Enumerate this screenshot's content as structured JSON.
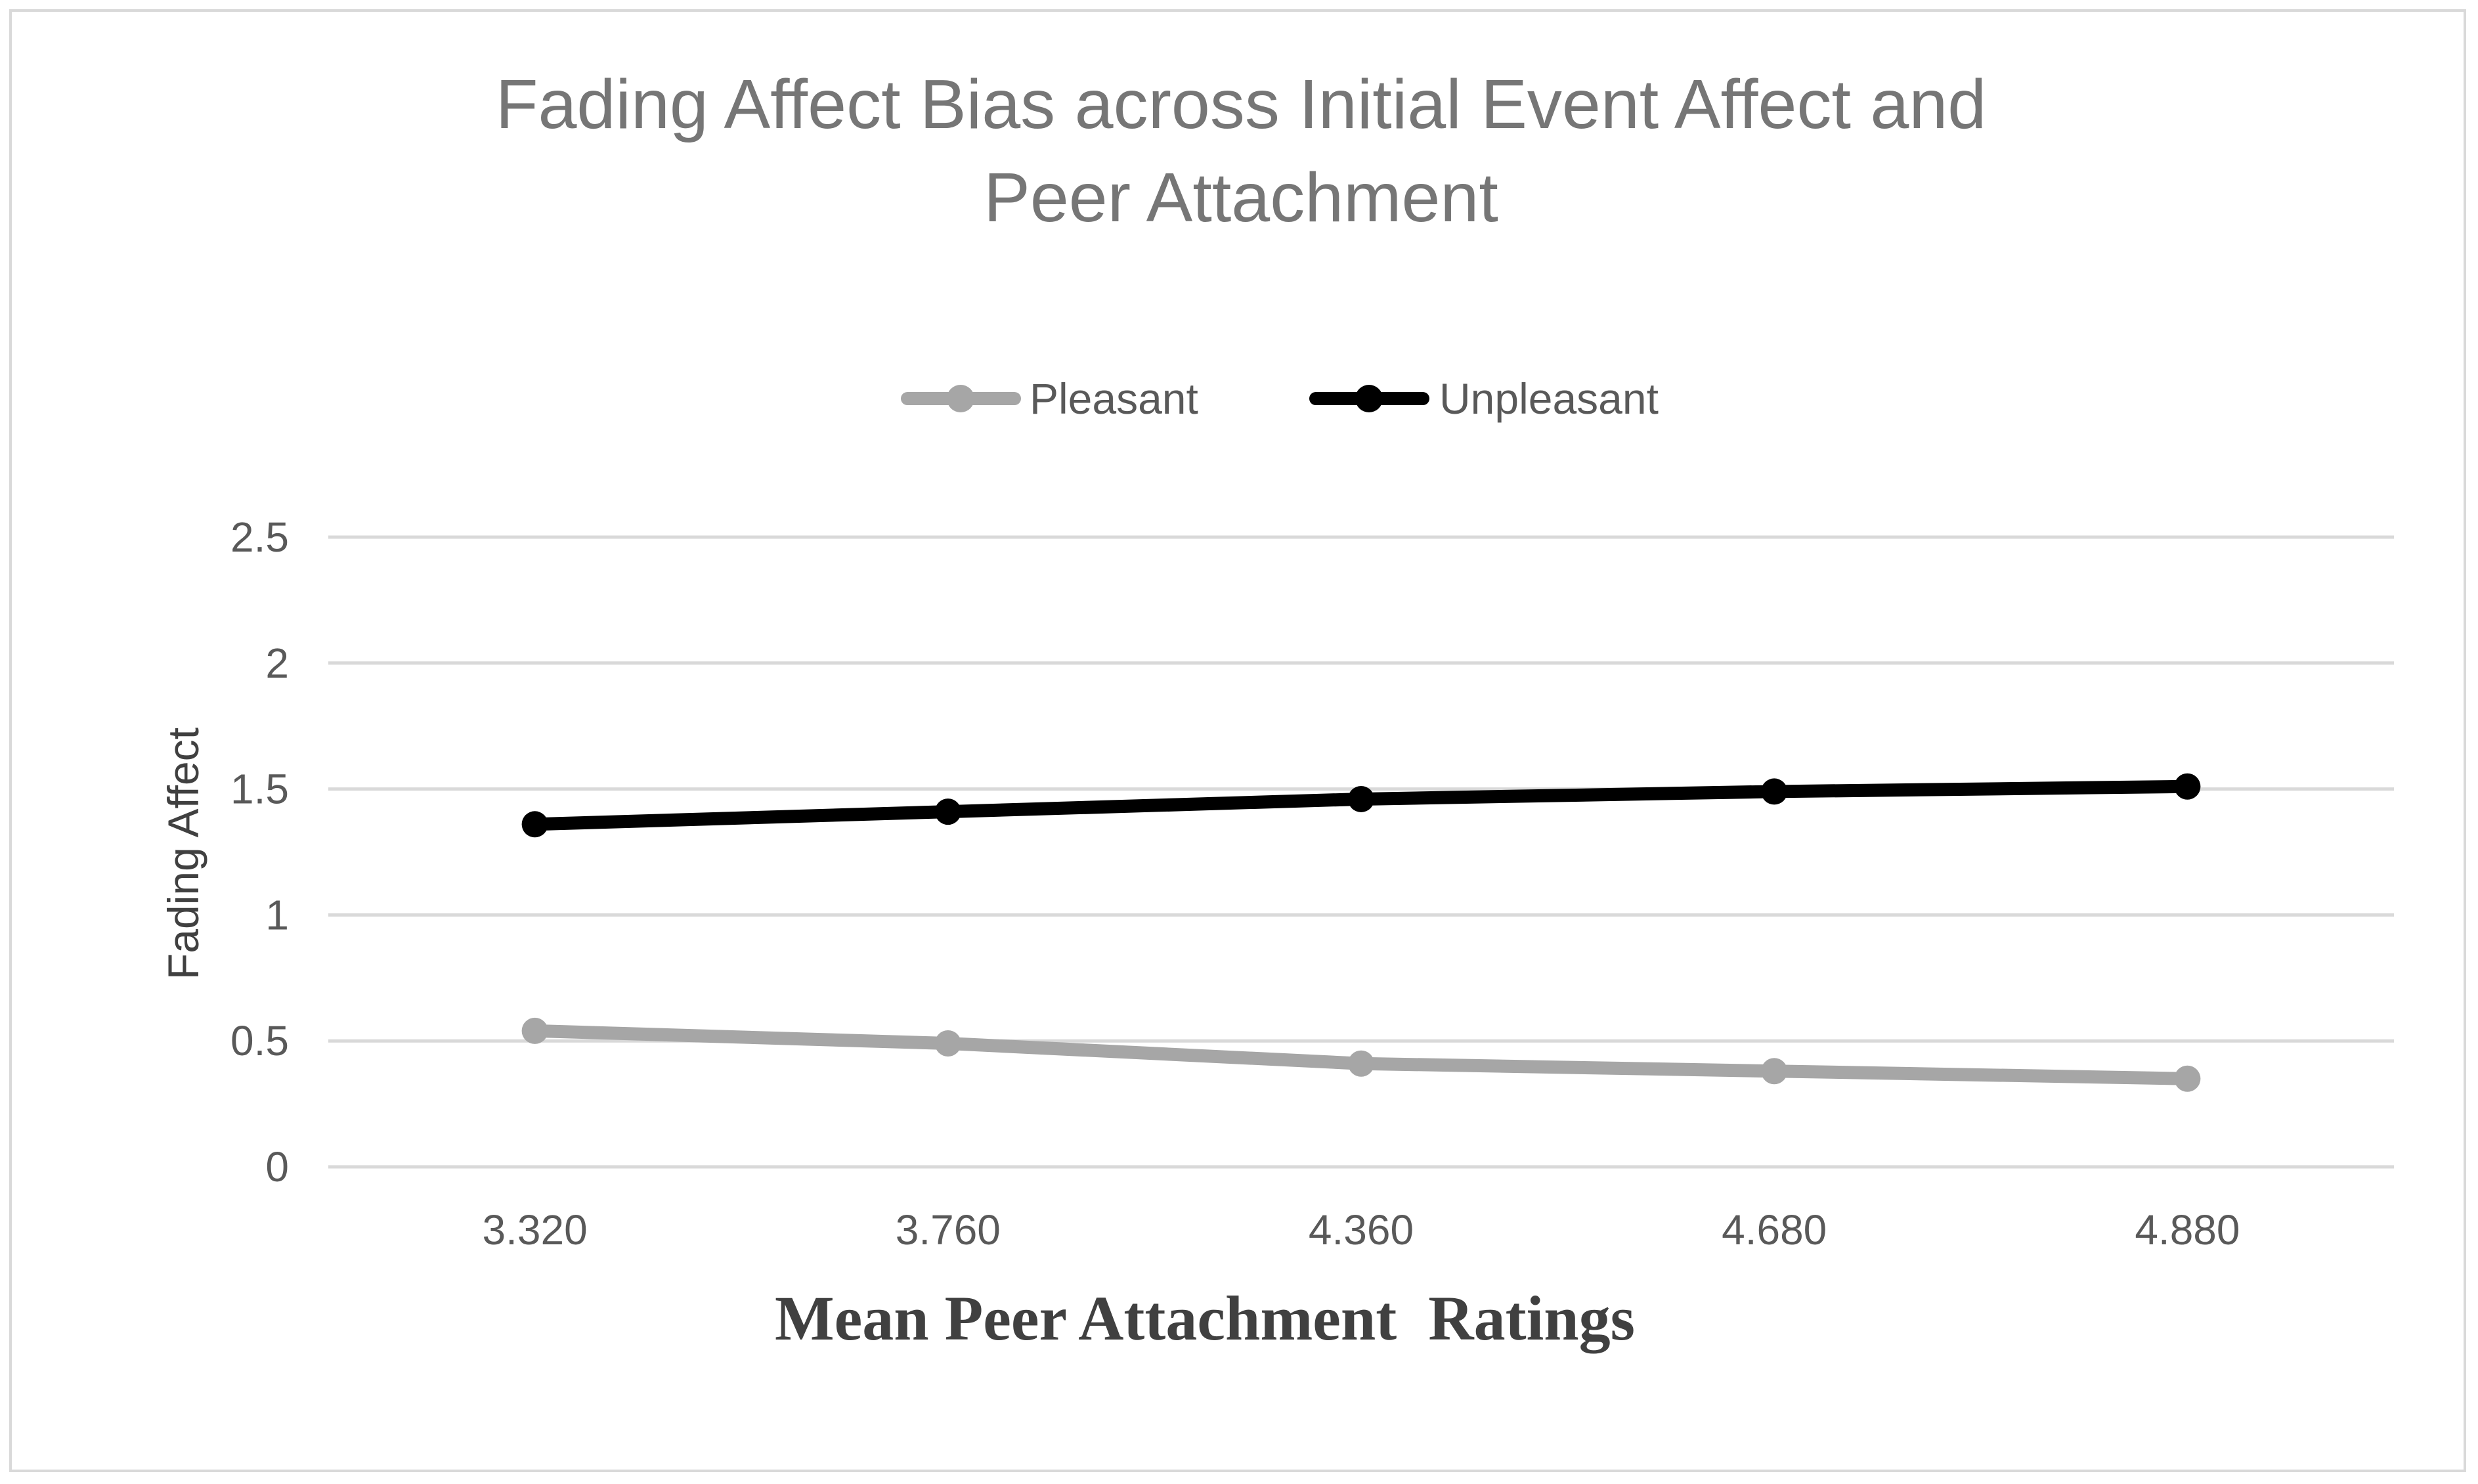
{
  "chart_data": {
    "type": "line",
    "title": "Fading Affect Bias across Initial Event Affect and Peer Attachment",
    "title_lines": [
      "Fading Affect Bias across Initial Event Affect and",
      "Peer Attachment"
    ],
    "xlabel": "Mean Peer Attachment  Ratings",
    "ylabel": "Fading Affect",
    "categories": [
      "3.320",
      "3.760",
      "4.360",
      "4.680",
      "4.880"
    ],
    "ylim": [
      0,
      2.5
    ],
    "yticks": [
      0,
      0.5,
      1,
      1.5,
      2,
      2.5
    ],
    "ytick_labels": [
      "0",
      "0.5",
      "1",
      "1.5",
      "2",
      "2.5"
    ],
    "grid": true,
    "legend_position": "top-center",
    "series": [
      {
        "name": "Pleasant",
        "color": "#a6a6a6",
        "values": [
          0.54,
          0.49,
          0.41,
          0.38,
          0.35
        ]
      },
      {
        "name": "Unpleasant",
        "color": "#000000",
        "values": [
          1.36,
          1.41,
          1.46,
          1.49,
          1.51
        ]
      }
    ]
  }
}
